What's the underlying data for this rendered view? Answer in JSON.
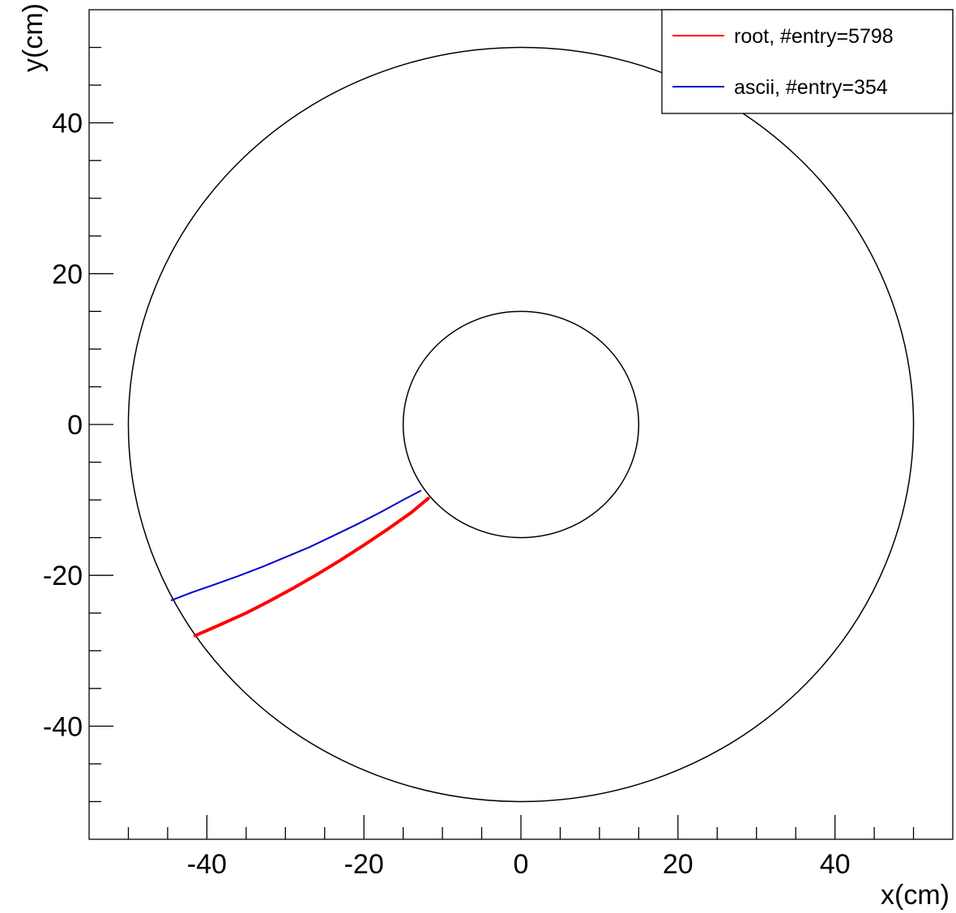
{
  "chart_data": {
    "type": "line",
    "title": "",
    "xlabel": "x(cm)",
    "ylabel": "y(cm)",
    "xlim": [
      -55,
      55
    ],
    "ylim": [
      -55,
      55
    ],
    "grid": false,
    "legend_position": "top-right",
    "x_ticks": [
      -40,
      -20,
      0,
      20,
      40
    ],
    "y_ticks": [
      -40,
      -20,
      0,
      20,
      40
    ],
    "x_tick_labels": [
      "-40",
      "-20",
      "0",
      "20",
      "40"
    ],
    "y_tick_labels": [
      "-40",
      "-20",
      "0",
      "20",
      "40"
    ],
    "circles": [
      {
        "cx": 0,
        "cy": 0,
        "r": 50,
        "color": "#000000"
      },
      {
        "cx": 0,
        "cy": 0,
        "r": 15,
        "color": "#000000"
      }
    ],
    "series": [
      {
        "name": "root, #entry=5798",
        "color": "#ff0000",
        "x": [
          -11.8,
          -14,
          -17,
          -20,
          -23,
          -26,
          -29,
          -32,
          -35,
          -38,
          -41.5
        ],
        "y": [
          -9.8,
          -11.7,
          -13.9,
          -16.0,
          -18.0,
          -19.9,
          -21.7,
          -23.4,
          -25.0,
          -26.4,
          -28.0
        ]
      },
      {
        "name": "ascii, #entry=354",
        "color": "#0000cc",
        "x": [
          -12.8,
          -15,
          -18,
          -21,
          -24,
          -27,
          -30,
          -33,
          -36,
          -39,
          -42,
          -44.5
        ],
        "y": [
          -8.8,
          -10.0,
          -11.7,
          -13.3,
          -14.8,
          -16.3,
          -17.6,
          -18.9,
          -20.1,
          -21.2,
          -22.3,
          -23.3
        ]
      }
    ]
  }
}
